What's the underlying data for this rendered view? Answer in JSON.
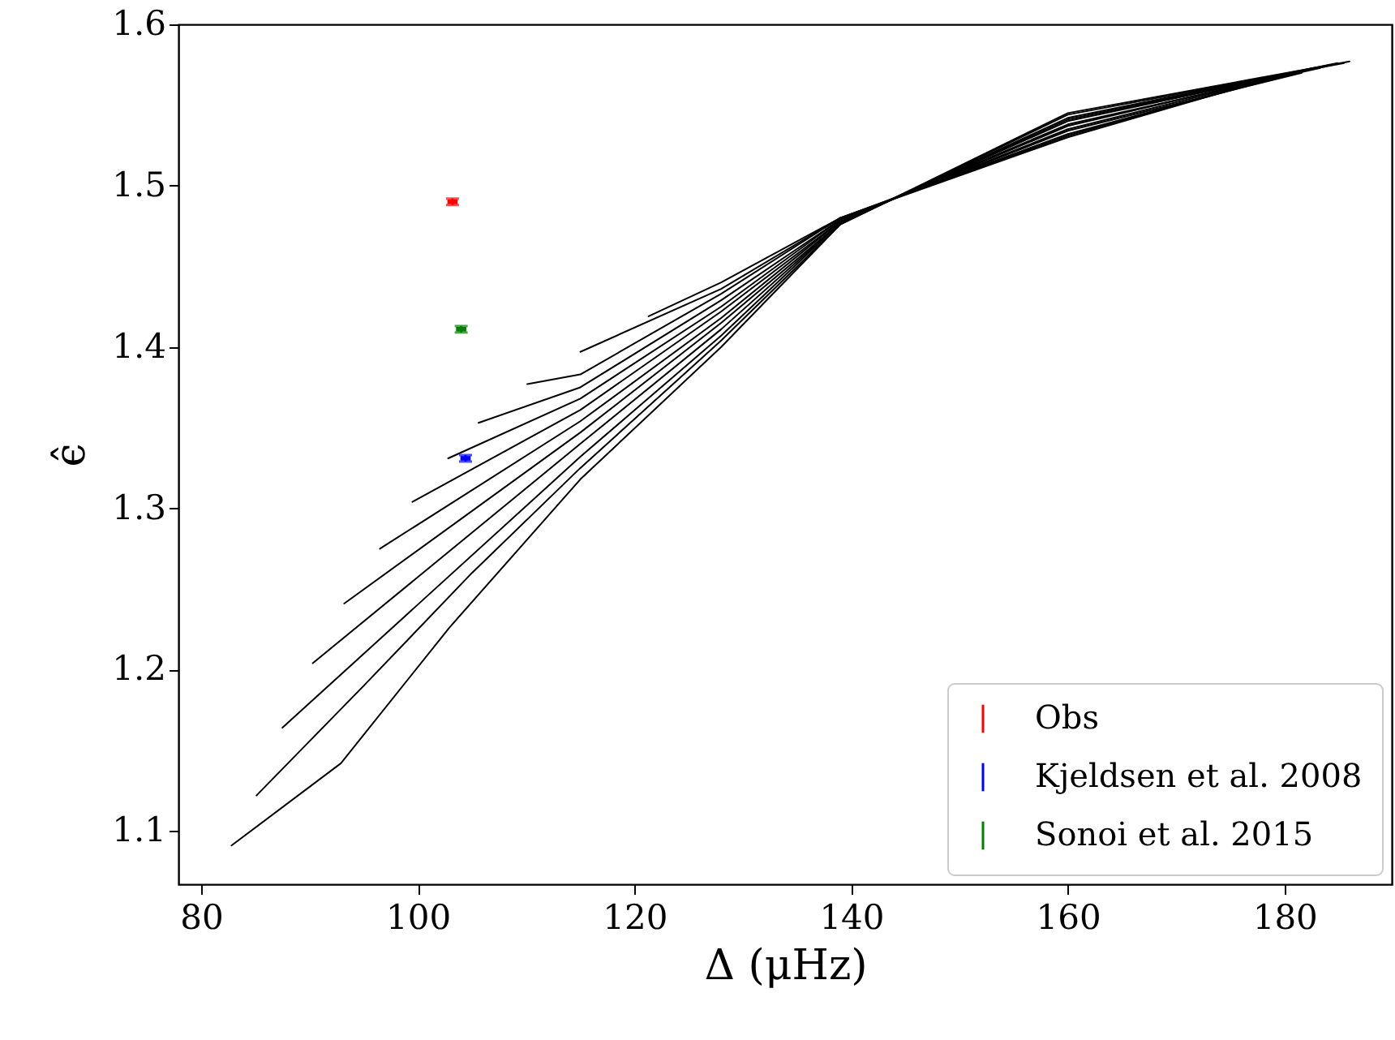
{
  "chart_data": {
    "type": "line",
    "xlabel": "Δ (μHz)",
    "ylabel": "ϵ̂",
    "xlim": [
      77.9,
      189.9
    ],
    "ylim": [
      1.067,
      1.6
    ],
    "xticks": [
      80,
      100,
      120,
      140,
      160,
      180
    ],
    "yticks": [
      1.1,
      1.2,
      1.3,
      1.4,
      1.5,
      1.6
    ],
    "grid": false,
    "legend": "bottom right",
    "series": [
      {
        "color": "#000000",
        "x": [
          82.8,
          92.9,
          102.9,
          115,
          128,
          139,
          160,
          186
        ],
        "values": [
          1.091,
          1.142,
          1.226,
          1.318,
          1.4,
          1.476,
          1.545,
          1.577
        ]
      },
      {
        "color": "#000000",
        "x": [
          85.1,
          95,
          105,
          115,
          128,
          139,
          160,
          185.5
        ],
        "values": [
          1.122,
          1.19,
          1.26,
          1.325,
          1.404,
          1.476,
          1.544,
          1.576
        ]
      },
      {
        "color": "#000000",
        "x": [
          87.5,
          115,
          128,
          139,
          160,
          184.9
        ],
        "values": [
          1.164,
          1.332,
          1.407,
          1.477,
          1.542,
          1.576
        ]
      },
      {
        "color": "#000000",
        "x": [
          90.3,
          115,
          128,
          139,
          160,
          184.4
        ],
        "values": [
          1.204,
          1.34,
          1.411,
          1.477,
          1.541,
          1.575
        ]
      },
      {
        "color": "#000000",
        "x": [
          93.2,
          115,
          128,
          139,
          160,
          183.8
        ],
        "values": [
          1.241,
          1.347,
          1.415,
          1.477,
          1.54,
          1.574
        ]
      },
      {
        "color": "#000000",
        "x": [
          96.5,
          115,
          128,
          139,
          160,
          183.3
        ],
        "values": [
          1.275,
          1.354,
          1.418,
          1.478,
          1.538,
          1.573
        ]
      },
      {
        "color": "#000000",
        "x": [
          99.5,
          115,
          128,
          139,
          160,
          182.7
        ],
        "values": [
          1.304,
          1.361,
          1.422,
          1.478,
          1.537,
          1.573
        ]
      },
      {
        "color": "#000000",
        "x": [
          102.8,
          115,
          128,
          139,
          160,
          182.2
        ],
        "values": [
          1.331,
          1.368,
          1.425,
          1.479,
          1.535,
          1.572
        ]
      },
      {
        "color": "#000000",
        "x": [
          105.6,
          115,
          128,
          139,
          160,
          181.6
        ],
        "values": [
          1.353,
          1.375,
          1.429,
          1.479,
          1.534,
          1.57
        ]
      },
      {
        "color": "#000000",
        "x": [
          110.1,
          115,
          128,
          139,
          160,
          181.1
        ],
        "values": [
          1.377,
          1.383,
          1.433,
          1.48,
          1.532,
          1.57
        ]
      },
      {
        "color": "#000000",
        "x": [
          115,
          128,
          139,
          160,
          180.5
        ],
        "values": [
          1.397,
          1.436,
          1.48,
          1.531,
          1.57
        ]
      },
      {
        "color": "#000000",
        "x": [
          121.3,
          128,
          139,
          160,
          180
        ],
        "values": [
          1.419,
          1.44,
          1.48,
          1.53,
          1.569
        ]
      },
      {
        "type": "scatter",
        "name": "Obs",
        "color": "#ff0000",
        "x": [
          103.2
        ],
        "values": [
          1.49
        ],
        "errors": [
          0.002
        ]
      },
      {
        "type": "scatter",
        "name": "Kjeldsen et al. 2008",
        "color": "#0000ff",
        "x": [
          104.4
        ],
        "values": [
          1.331
        ],
        "errors": [
          0.002
        ]
      },
      {
        "type": "scatter",
        "name": "Sonoi et al. 2015",
        "color": "#008000",
        "x": [
          104.0
        ],
        "values": [
          1.411
        ],
        "errors": [
          0.002
        ]
      }
    ]
  }
}
